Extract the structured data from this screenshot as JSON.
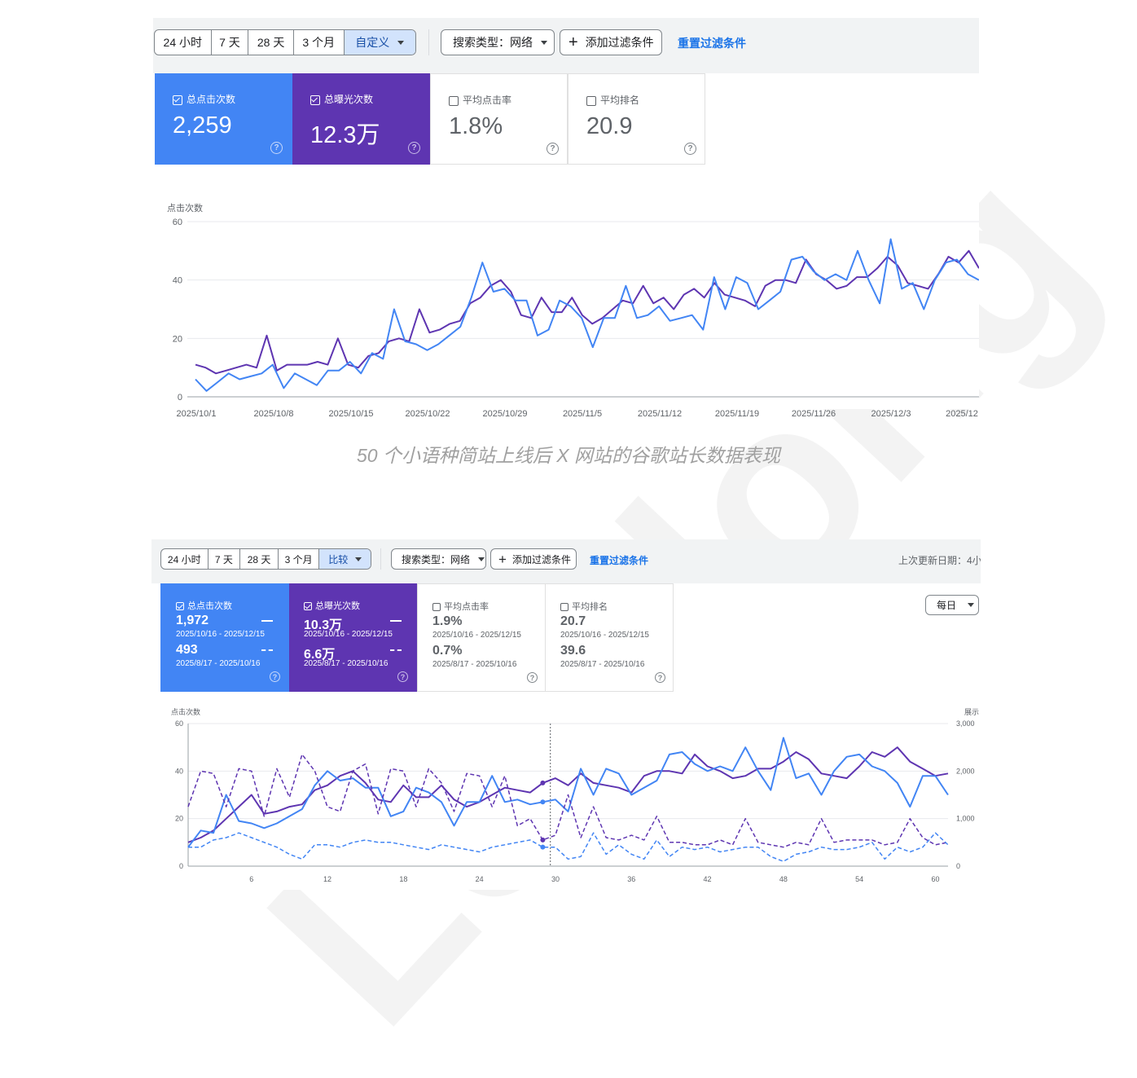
{
  "watermark": "Leadong",
  "caption": "50 个小语种简站上线后 X 网站的谷歌站长数据表现",
  "colors": {
    "clicks": "#4285f4",
    "impressions": "#5e35b1",
    "link": "#1a73e8"
  },
  "panel1": {
    "ranges": [
      "24 小时",
      "7 天",
      "28 天",
      "3 个月",
      "自定义"
    ],
    "selected_range": "自定义",
    "search_type": "搜索类型：网络",
    "add_filter": "添加过滤条件",
    "reset": "重置过滤条件",
    "metrics": [
      {
        "label": "总点击次数",
        "value": "2,259",
        "checked": true
      },
      {
        "label": "总曝光次数",
        "value": "12.3万",
        "checked": true
      },
      {
        "label": "平均点击率",
        "value": "1.8%",
        "checked": false
      },
      {
        "label": "平均排名",
        "value": "20.9",
        "checked": false
      }
    ]
  },
  "panel2": {
    "ranges": [
      "24 小时",
      "7 天",
      "28 天",
      "3 个月",
      "比较"
    ],
    "selected_range": "比较",
    "search_type": "搜索类型：网络",
    "add_filter": "添加过滤条件",
    "reset": "重置过滤条件",
    "last_updated": "上次更新日期：4小",
    "interval": "每日",
    "metrics": [
      {
        "label": "总点击次数",
        "checked": true,
        "value_a": "1,972",
        "range_a": "2025/10/16 - 2025/12/15",
        "value_b": "493",
        "range_b": "2025/8/17 - 2025/10/16"
      },
      {
        "label": "总曝光次数",
        "checked": true,
        "value_a": "10.3万",
        "range_a": "2025/10/16 - 2025/12/15",
        "value_b": "6.6万",
        "range_b": "2025/8/17 - 2025/10/16"
      },
      {
        "label": "平均点击率",
        "checked": false,
        "value_a": "1.9%",
        "range_a": "2025/10/16 - 2025/12/15",
        "value_b": "0.7%",
        "range_b": "2025/8/17 - 2025/10/16"
      },
      {
        "label": "平均排名",
        "checked": false,
        "value_a": "20.7",
        "range_a": "2025/10/16 - 2025/12/15",
        "value_b": "39.6",
        "range_b": "2025/8/17 - 2025/10/16"
      }
    ]
  },
  "chart_data": [
    {
      "type": "line",
      "ylabel": "点击次数",
      "ylim": [
        0,
        60
      ],
      "yticks": [
        0,
        20,
        40,
        60
      ],
      "xticks": [
        "2025/10/1",
        "2025/10/8",
        "2025/10/15",
        "2025/10/22",
        "2025/10/29",
        "2025/11/5",
        "2025/11/12",
        "2025/11/19",
        "2025/11/26",
        "2025/12/3",
        "2025/12"
      ],
      "grid": true,
      "series": [
        {
          "color": "#5e35b1",
          "values": [
            11,
            10,
            8,
            9,
            10,
            11,
            10,
            21,
            9,
            11,
            11,
            11,
            12,
            11,
            20,
            11,
            10,
            14,
            15,
            19,
            20,
            19,
            30,
            22,
            23,
            25,
            26,
            32,
            34,
            38,
            40,
            36,
            28,
            27,
            34,
            29,
            29,
            34,
            28,
            25,
            27,
            30,
            33,
            32,
            38,
            32,
            34,
            30,
            35,
            37,
            34,
            39,
            35,
            34,
            33,
            31,
            38,
            40,
            40,
            39,
            47,
            42,
            40,
            37,
            38,
            41,
            41,
            44,
            48,
            45,
            39,
            38,
            37,
            42,
            48,
            46,
            50,
            44
          ]
        },
        {
          "color": "#4285f4",
          "values": [
            6,
            2,
            5,
            8,
            6,
            7,
            8,
            11,
            3,
            8,
            6,
            4,
            9,
            9,
            12,
            8,
            15,
            13,
            30,
            19,
            18,
            16,
            18,
            21,
            24,
            34,
            46,
            36,
            37,
            33,
            33,
            21,
            23,
            33,
            31,
            27,
            17,
            27,
            27,
            38,
            27,
            28,
            31,
            26,
            27,
            28,
            23,
            41,
            30,
            41,
            39,
            30,
            33,
            36,
            47,
            48,
            43,
            40,
            42,
            40,
            50,
            40,
            32,
            54,
            37,
            39,
            30,
            40,
            46,
            47,
            42,
            40
          ]
        }
      ]
    },
    {
      "type": "line",
      "ylabel": "点击次数",
      "y2label": "展示",
      "ylim": [
        0,
        60
      ],
      "y2lim": [
        0,
        3000
      ],
      "yticks": [
        0,
        20,
        40,
        60
      ],
      "y2ticks": [
        "0",
        "1,000",
        "2,000",
        "3,000"
      ],
      "xticks": [
        6,
        12,
        18,
        24,
        30,
        36,
        42,
        48,
        54,
        60
      ],
      "xlim": [
        1,
        61
      ],
      "grid": true,
      "series": [
        {
          "color": "#5e35b1",
          "values": [
            10,
            12,
            15,
            20,
            25,
            30,
            22,
            23,
            25,
            26,
            32,
            34,
            38,
            40,
            35,
            28,
            27,
            34,
            29,
            29,
            34,
            28,
            25,
            27,
            30,
            33,
            32,
            31,
            35,
            37,
            34,
            39,
            35,
            34,
            33,
            31,
            38,
            40,
            40,
            39,
            47,
            42,
            40,
            37,
            38,
            41,
            41,
            44,
            48,
            45,
            39,
            38,
            37,
            42,
            48,
            46,
            50,
            44,
            41,
            38,
            39
          ]
        },
        {
          "color": "#4285f4",
          "values": [
            8,
            15,
            14,
            30,
            19,
            18,
            16,
            18,
            21,
            24,
            34,
            40,
            36,
            37,
            33,
            33,
            21,
            23,
            33,
            31,
            27,
            17,
            27,
            27,
            38,
            27,
            28,
            26,
            27,
            28,
            23,
            41,
            30,
            41,
            39,
            30,
            33,
            36,
            47,
            48,
            43,
            40,
            42,
            40,
            50,
            40,
            32,
            54,
            37,
            39,
            30,
            40,
            46,
            47,
            42,
            40,
            35,
            25,
            38,
            38,
            30
          ]
        },
        {
          "color": "#5e35b1",
          "dashed": true,
          "name": "",
          "values": [
            25,
            40,
            39,
            25,
            41,
            40,
            21,
            41,
            29,
            47,
            40,
            25,
            23,
            40,
            43,
            22,
            41,
            40,
            25,
            41,
            35,
            23,
            39,
            38,
            25,
            38,
            17,
            20,
            11,
            13,
            30,
            12,
            25,
            12,
            11,
            13,
            11,
            21,
            10,
            10,
            9,
            9,
            11,
            9,
            20,
            10,
            9,
            8,
            10,
            9,
            20,
            10,
            11,
            11,
            11,
            9,
            10,
            20,
            12,
            9,
            10
          ]
        },
        {
          "color": "#4285f4",
          "dashed": true,
          "name": "",
          "values": [
            8,
            8,
            11,
            12,
            14,
            12,
            10,
            8,
            5,
            3,
            9,
            9,
            8,
            10,
            11,
            10,
            10,
            9,
            8,
            7,
            9,
            8,
            7,
            6,
            8,
            9,
            10,
            11,
            8,
            8,
            3,
            4,
            14,
            5,
            9,
            5,
            3,
            11,
            4,
            8,
            7,
            8,
            6,
            7,
            8,
            8,
            4,
            2,
            5,
            6,
            8,
            7,
            7,
            8,
            10,
            3,
            8,
            6,
            8,
            14,
            9
          ]
        }
      ]
    }
  ]
}
